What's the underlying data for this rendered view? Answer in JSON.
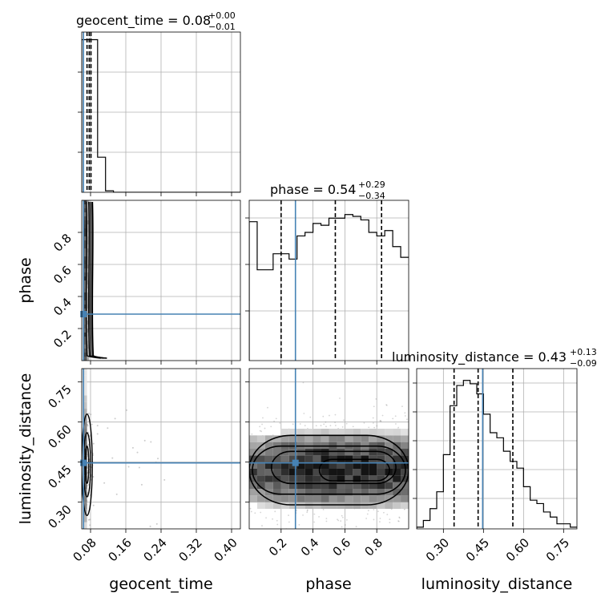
{
  "chart_data": {
    "type": "corner",
    "parameters": [
      "geocent_time",
      "phase",
      "luminosity_distance"
    ],
    "truth_color": "#4682b4",
    "hist_color": "#000000",
    "ranges": {
      "geocent_time": [
        0.06,
        0.42
      ],
      "phase": [
        0.0,
        1.0
      ],
      "luminosity_distance": [
        0.2,
        0.8
      ]
    },
    "truths": {
      "geocent_time": 0.064,
      "phase": 0.29,
      "luminosity_distance": 0.447
    },
    "ticks": {
      "geocent_time": [
        0.08,
        0.16,
        0.24,
        0.32,
        0.4
      ],
      "phase": [
        0.2,
        0.4,
        0.6,
        0.8
      ],
      "luminosity_distance": [
        0.3,
        0.45,
        0.6,
        0.75
      ]
    },
    "tick_labels": {
      "geocent_time": [
        "0.08",
        "0.16",
        "0.24",
        "0.32",
        "0.40"
      ],
      "phase": [
        "0.2",
        "0.4",
        "0.6",
        "0.8"
      ],
      "luminosity_distance": [
        "0.30",
        "0.45",
        "0.60",
        "0.75"
      ]
    },
    "axis_labels": {
      "geocent_time": "geocent_time",
      "phase": "phase",
      "luminosity_distance": "luminosity_distance"
    },
    "titles": {
      "geocent_time": {
        "prefix": "geocent_time = 0.08",
        "plus": "+0.00",
        "minus": "−0.01"
      },
      "phase": {
        "prefix": "phase = 0.54",
        "plus": "+0.29",
        "minus": "−0.34"
      },
      "luminosity_distance": {
        "prefix": "luminosity_distance = 0.43",
        "plus": "+0.13",
        "minus": "−0.09"
      }
    },
    "quantiles": {
      "geocent_time": [
        0.072,
        0.077,
        0.081
      ],
      "phase": [
        0.2,
        0.54,
        0.83
      ],
      "luminosity_distance": [
        0.34,
        0.43,
        0.56
      ]
    },
    "histograms": {
      "geocent_time": {
        "edges": [
          0.06,
          0.078,
          0.096,
          0.114,
          0.132,
          0.15,
          0.42
        ],
        "counts": [
          100,
          100,
          23,
          1,
          0,
          0
        ]
      },
      "phase": {
        "edges": [
          0.0,
          0.05,
          0.1,
          0.15,
          0.2,
          0.25,
          0.3,
          0.35,
          0.4,
          0.45,
          0.5,
          0.55,
          0.6,
          0.65,
          0.7,
          0.75,
          0.8,
          0.85,
          0.9,
          0.95,
          1.0
        ],
        "counts": [
          78,
          51,
          51,
          60,
          60,
          57,
          70,
          72,
          77,
          76,
          80,
          80,
          82,
          81,
          79,
          72,
          70,
          73,
          64,
          58
        ]
      },
      "luminosity_distance": {
        "edges": [
          0.2,
          0.225,
          0.25,
          0.275,
          0.3,
          0.325,
          0.35,
          0.375,
          0.4,
          0.425,
          0.45,
          0.475,
          0.5,
          0.525,
          0.55,
          0.575,
          0.6,
          0.625,
          0.65,
          0.675,
          0.7,
          0.725,
          0.75,
          0.775,
          0.8
        ],
        "counts": [
          1,
          5,
          12,
          22,
          44,
          73,
          85,
          88,
          86,
          80,
          68,
          57,
          54,
          46,
          40,
          36,
          25,
          17,
          15,
          10,
          7,
          3,
          3,
          1
        ]
      }
    },
    "hist_ymax": {
      "geocent_time": 105,
      "phase": 90,
      "luminosity_distance": 95
    },
    "contours": {
      "geocent_time_vs_phase": {
        "x": [
          0.0705,
          0.075,
          0.079,
          0.082,
          0.0845
        ],
        "y_range": [
          0.03,
          0.99
        ]
      },
      "geocent_time_vs_luminosity_distance": {
        "center": [
          0.072,
          0.44
        ],
        "x_radii": [
          0.004,
          0.008,
          0.012
        ],
        "y_radii": [
          0.07,
          0.12,
          0.19
        ]
      },
      "phase_vs_luminosity_distance": {
        "levels": [
          {
            "x_range": [
              0.0,
              1.0
            ],
            "y_range": [
              0.29,
              0.55
            ]
          },
          {
            "x_range": [
              0.02,
              0.98
            ],
            "y_range": [
              0.33,
              0.51
            ]
          },
          {
            "x_range": [
              0.14,
              0.92
            ],
            "y_range": [
              0.37,
              0.49
            ]
          },
          {
            "x_range": [
              0.44,
              0.88
            ],
            "y_range": [
              0.38,
              0.46
            ]
          }
        ]
      }
    }
  }
}
